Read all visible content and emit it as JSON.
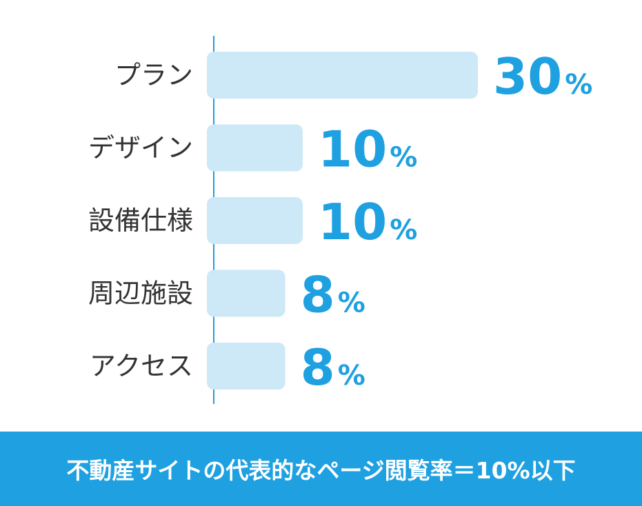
{
  "chart_data": {
    "type": "bar",
    "orientation": "horizontal",
    "categories": [
      "プラン",
      "デザイン",
      "設備仕様",
      "周辺施設",
      "アクセス"
    ],
    "values": [
      30,
      10,
      10,
      8,
      8
    ],
    "value_labels": [
      "30",
      "10",
      "10",
      "8",
      "8"
    ],
    "unit": "%",
    "xlim": [
      0,
      30
    ],
    "grid": false,
    "legend": "none"
  },
  "colors": {
    "bar": "#cde8f7",
    "accent": "#1ea0e1",
    "axis": "#1ea0e1",
    "label": "#333333"
  },
  "footer": {
    "text": "不動産サイトの代表的なページ閲覧率＝10%以下"
  }
}
